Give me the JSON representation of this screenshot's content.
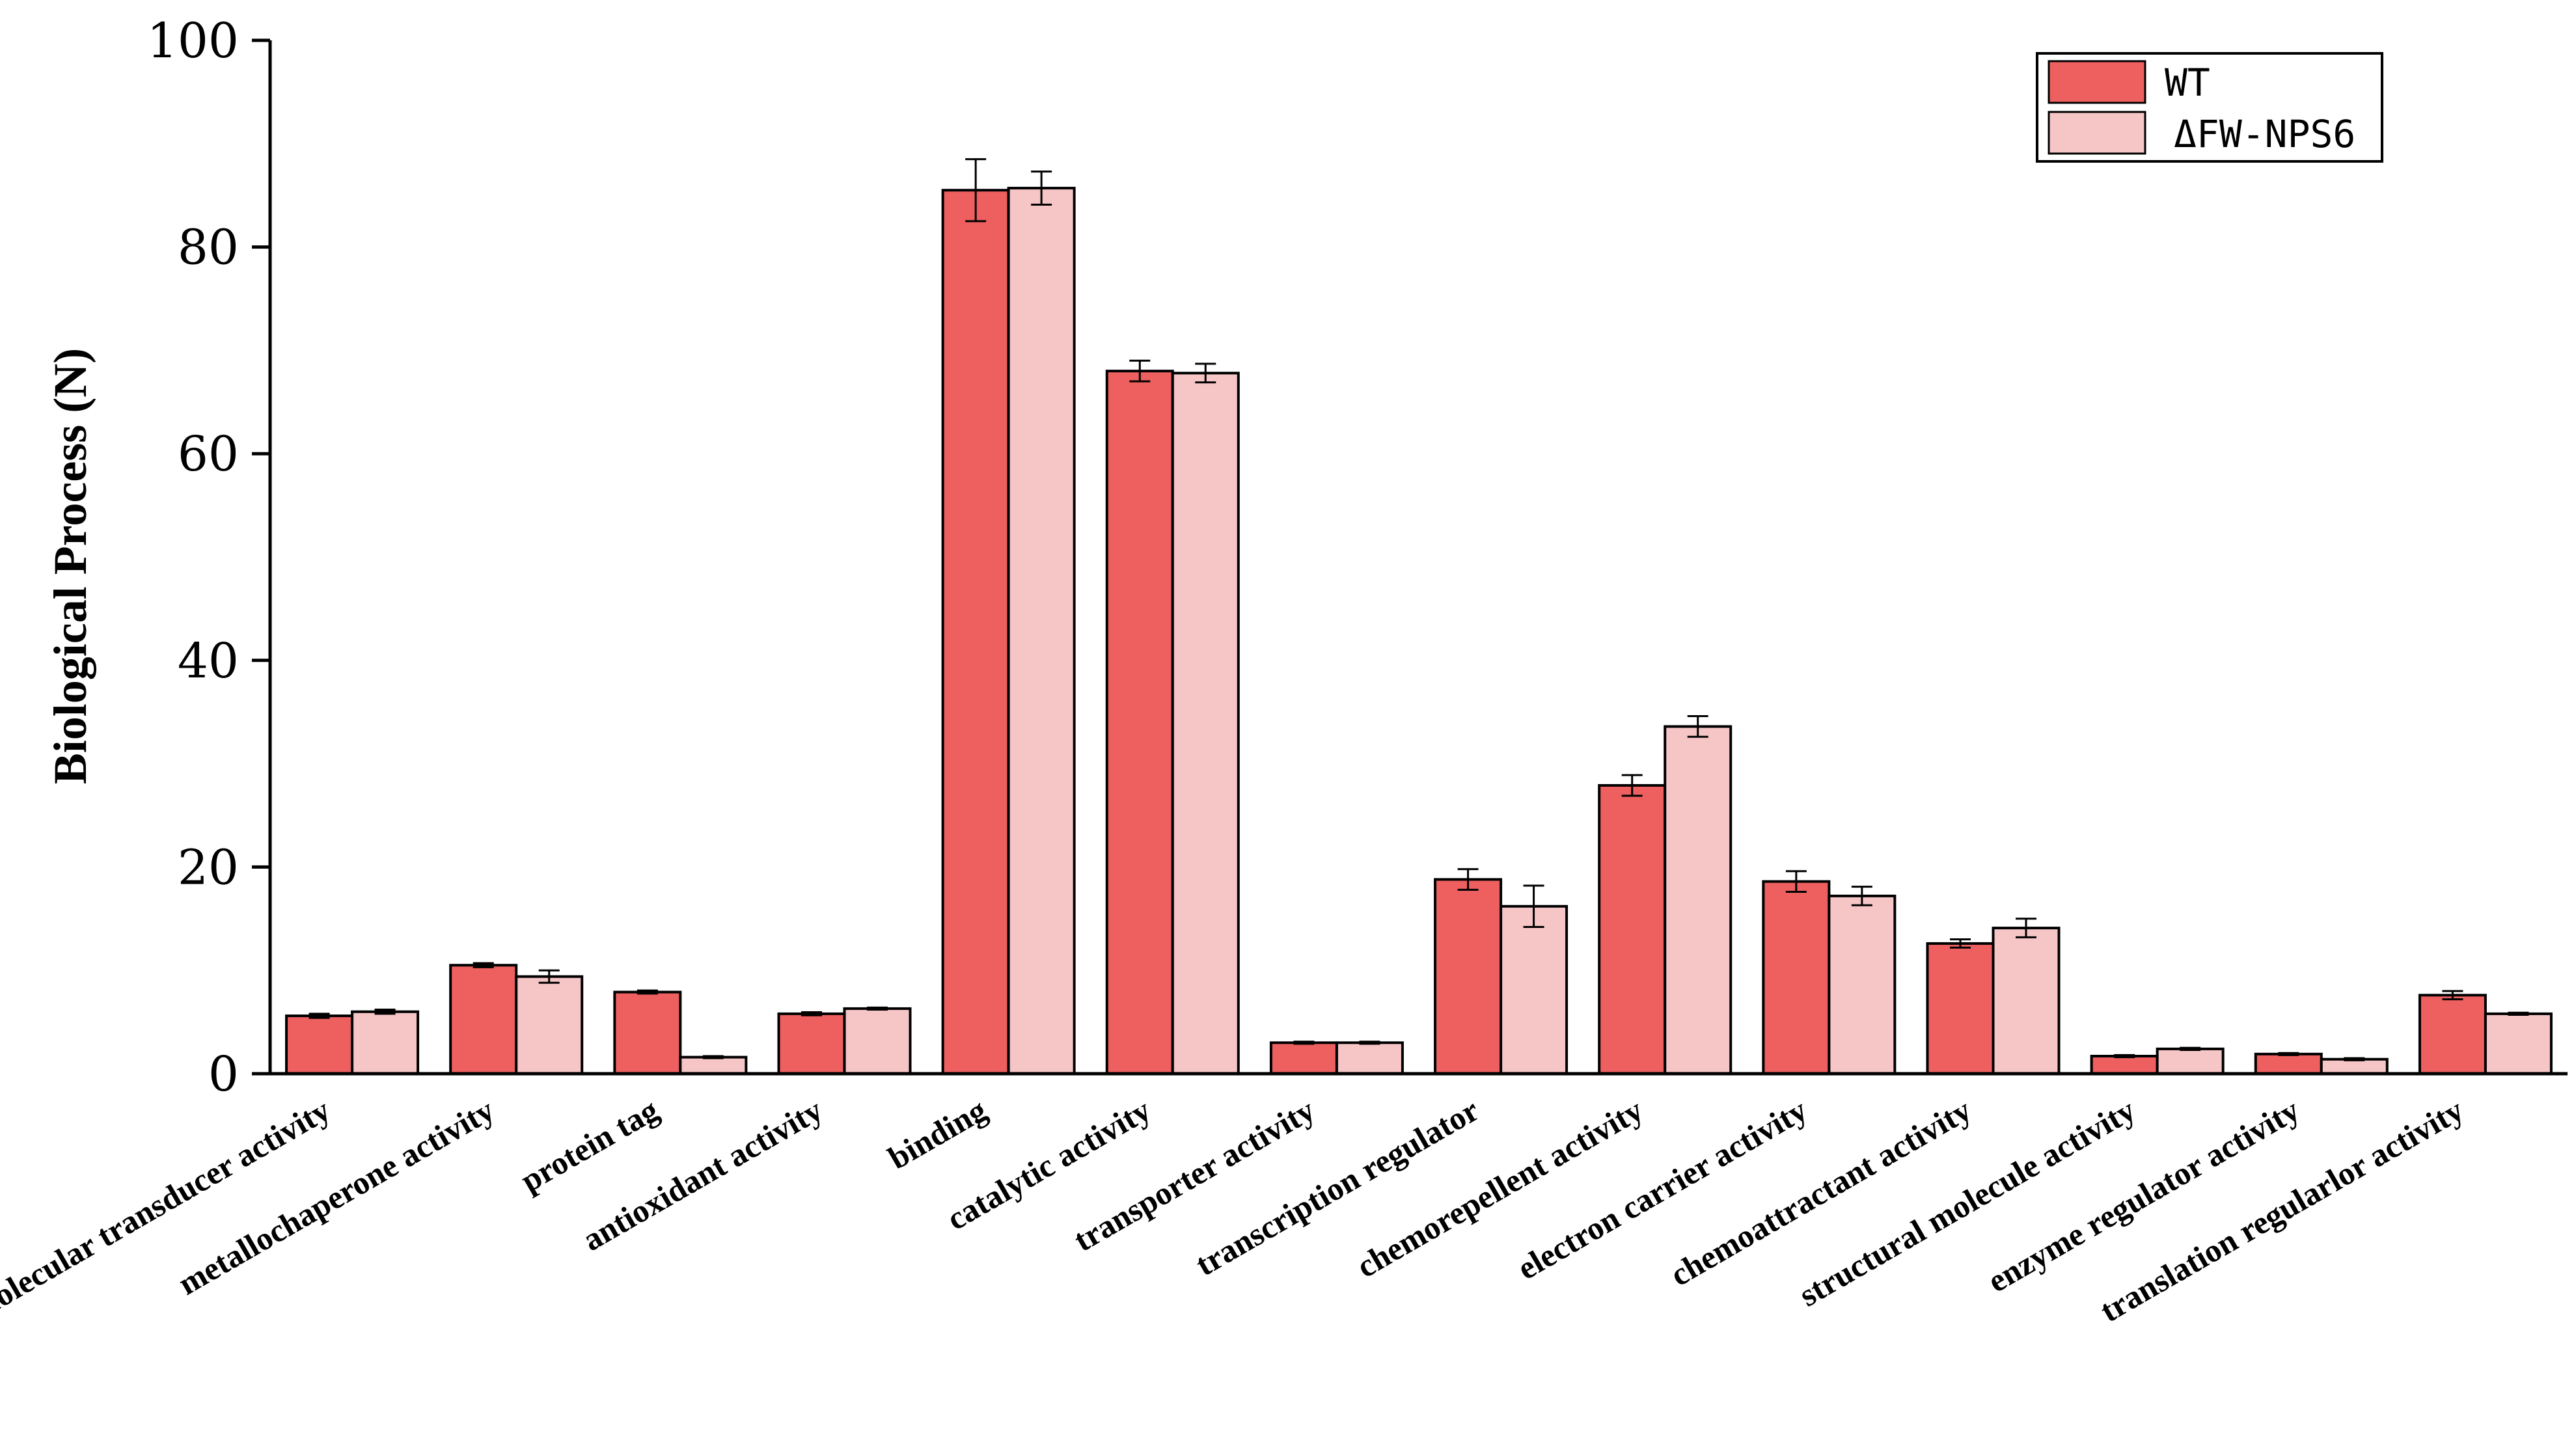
{
  "chart_data": {
    "type": "bar",
    "title": "",
    "xlabel": "",
    "ylabel": "Biological Process (N)",
    "ylim": [
      0,
      100
    ],
    "yticks": [
      0,
      20,
      40,
      60,
      80,
      100
    ],
    "grid": false,
    "legend_position": "top-right",
    "categories": [
      "molecular transducer activity",
      "metallochaperone activity",
      "protein tag",
      "antioxidant activity",
      "binding",
      "catalytic activity",
      "transporter activity",
      "transcription regulator",
      "chemorepellent activity",
      "electron carrier activity",
      "chemoattractant activity",
      "structural molecule activity",
      "enzyme regulator activity",
      "translation regularlor activity"
    ],
    "series": [
      {
        "name": "WT",
        "color": "#EE6060",
        "values": [
          5.6,
          10.5,
          7.9,
          5.8,
          85.5,
          68.0,
          3.0,
          18.8,
          27.9,
          18.6,
          12.6,
          1.7,
          1.9,
          7.6
        ],
        "errors": [
          0.2,
          0.2,
          0.15,
          0.15,
          3.0,
          1.0,
          0.1,
          1.0,
          1.0,
          1.0,
          0.4,
          0.1,
          0.1,
          0.4
        ]
      },
      {
        "name": "ΔFW-NPS6",
        "color": "#F6C5C6",
        "values": [
          6.0,
          9.4,
          1.6,
          6.3,
          85.7,
          67.8,
          3.0,
          16.2,
          33.6,
          17.2,
          14.1,
          2.4,
          1.4,
          5.8
        ],
        "errors": [
          0.2,
          0.6,
          0.1,
          0.1,
          1.6,
          0.9,
          0.1,
          2.0,
          1.0,
          0.9,
          0.9,
          0.1,
          0.1,
          0.1
        ]
      }
    ]
  },
  "legend": {
    "wt_label": "WT",
    "mutant_label": "ΔFW-NPS6"
  }
}
